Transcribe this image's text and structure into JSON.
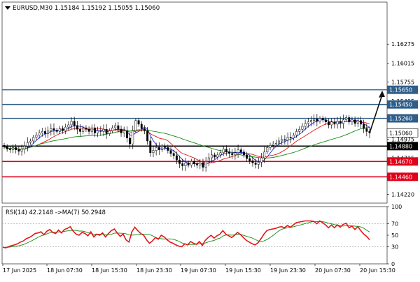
{
  "header": {
    "symbol_line": "EURUSD,M30  1.15184 1.15192 1.15055 1.15060"
  },
  "rsi_header": "RSI(14) 42.2148  ->MA(7) 50.2948",
  "chart_data": [
    {
      "type": "candlestick",
      "symbol": "EURUSD",
      "timeframe": "M30",
      "ohlc_last": {
        "open": 1.15184,
        "high": 1.15192,
        "low": 1.15055,
        "close": 1.1506
      },
      "ylim": [
        1.141,
        1.1685
      ],
      "y_ticks": [
        "1.16275",
        "1.16015",
        "1.15755",
        "1.15495",
        "1.15235",
        "1.14975",
        "1.14715",
        "1.14455",
        "1.14220"
      ],
      "x_ticks": [
        "17 Jun 2025",
        "18 Jun 07:30",
        "18 Jun 15:30",
        "18 Jun 23:30",
        "19 Jun 07:30",
        "19 Jun 15:30",
        "19 Jun 23:30",
        "20 Jun 07:30",
        "20 Jun 15:30"
      ],
      "price_levels": [
        {
          "label": "1.15650",
          "value": 1.1565,
          "color": "#2f5e8a",
          "width": 1.4
        },
        {
          "label": "1.15450",
          "value": 1.1545,
          "color": "#2f5e8a",
          "width": 1.4
        },
        {
          "label": "1.15260",
          "value": 1.1526,
          "color": "#2f5e8a",
          "width": 1.4
        },
        {
          "label": "1.14880",
          "value": 1.1488,
          "color": "#000000",
          "width": 1.6
        },
        {
          "label": "1.14670",
          "value": 1.1467,
          "color": "#e0001a",
          "width": 1.6
        },
        {
          "label": "1.14460",
          "value": 1.1446,
          "color": "#e0001a",
          "width": 1.6
        }
      ],
      "current_price_label": "1.15060",
      "forecast_arrow": {
        "from": 1.1506,
        "to": 1.1564
      },
      "ma_colors": {
        "fast": "#1d2bd6",
        "medium": "#e01818",
        "slow": "#108a10"
      },
      "closes": [
        1.1487,
        1.1484,
        1.1483,
        1.1486,
        1.1483,
        1.1481,
        1.1484,
        1.1488,
        1.1493,
        1.1495,
        1.15,
        1.1503,
        1.1506,
        1.1508,
        1.1505,
        1.1509,
        1.1512,
        1.151,
        1.1508,
        1.1512,
        1.1509,
        1.1514,
        1.1517,
        1.1522,
        1.1516,
        1.1511,
        1.1508,
        1.1513,
        1.1511,
        1.1508,
        1.1513,
        1.1506,
        1.1509,
        1.1508,
        1.1511,
        1.1505,
        1.1509,
        1.1513,
        1.1516,
        1.1511,
        1.1506,
        1.1509,
        1.1499,
        1.1491,
        1.1509,
        1.1523,
        1.1518,
        1.1512,
        1.1509,
        1.1495,
        1.1479,
        1.1482,
        1.1486,
        1.1483,
        1.1488,
        1.1486,
        1.1482,
        1.1478,
        1.1475,
        1.1469,
        1.1464,
        1.1461,
        1.1465,
        1.1462,
        1.1467,
        1.1464,
        1.1462,
        1.1465,
        1.1459,
        1.1467,
        1.1472,
        1.1476,
        1.1473,
        1.1476,
        1.1479,
        1.1484,
        1.148,
        1.1478,
        1.1476,
        1.1479,
        1.1483,
        1.148,
        1.1476,
        1.1471,
        1.1468,
        1.1465,
        1.1463,
        1.1466,
        1.1472,
        1.148,
        1.1486,
        1.1489,
        1.1491,
        1.1492,
        1.1495,
        1.1497,
        1.1496,
        1.15,
        1.1499,
        1.1503,
        1.1508,
        1.1511,
        1.1515,
        1.1519,
        1.1521,
        1.1523,
        1.1525,
        1.1522,
        1.1526,
        1.1524,
        1.1521,
        1.1517,
        1.1521,
        1.1518,
        1.1522,
        1.1519,
        1.1524,
        1.1527,
        1.1521,
        1.1524,
        1.1519,
        1.1523,
        1.1518,
        1.1512,
        1.1508,
        1.1506
      ],
      "rsi": {
        "period": 14,
        "value": 42.2148,
        "ma_period": 7,
        "ma_value": 50.2948,
        "ylim": [
          0,
          100
        ],
        "y_ticks": [
          "100",
          "70",
          "50",
          "30",
          "0"
        ],
        "levels": [
          70,
          30
        ],
        "line_color": "#e01818",
        "ma_color": "#108a10",
        "values": [
          29,
          28,
          30,
          32,
          33,
          35,
          38,
          40,
          44,
          46,
          49,
          53,
          54,
          56,
          51,
          57,
          60,
          55,
          53,
          59,
          54,
          60,
          62,
          65,
          57,
          52,
          50,
          55,
          53,
          49,
          56,
          47,
          52,
          50,
          54,
          47,
          53,
          58,
          61,
          54,
          48,
          52,
          42,
          38,
          56,
          64,
          58,
          53,
          50,
          42,
          36,
          40,
          46,
          43,
          50,
          47,
          42,
          38,
          36,
          33,
          31,
          30,
          35,
          33,
          39,
          36,
          34,
          39,
          32,
          41,
          46,
          50,
          45,
          49,
          52,
          58,
          52,
          49,
          46,
          50,
          55,
          51,
          46,
          41,
          38,
          35,
          33,
          37,
          44,
          52,
          58,
          60,
          61,
          62,
          64,
          65,
          63,
          67,
          64,
          68,
          72,
          73,
          74,
          75,
          75,
          75,
          74,
          70,
          75,
          72,
          68,
          63,
          68,
          63,
          68,
          64,
          69,
          71,
          63,
          66,
          60,
          65,
          58,
          52,
          48,
          42
        ]
      }
    }
  ]
}
